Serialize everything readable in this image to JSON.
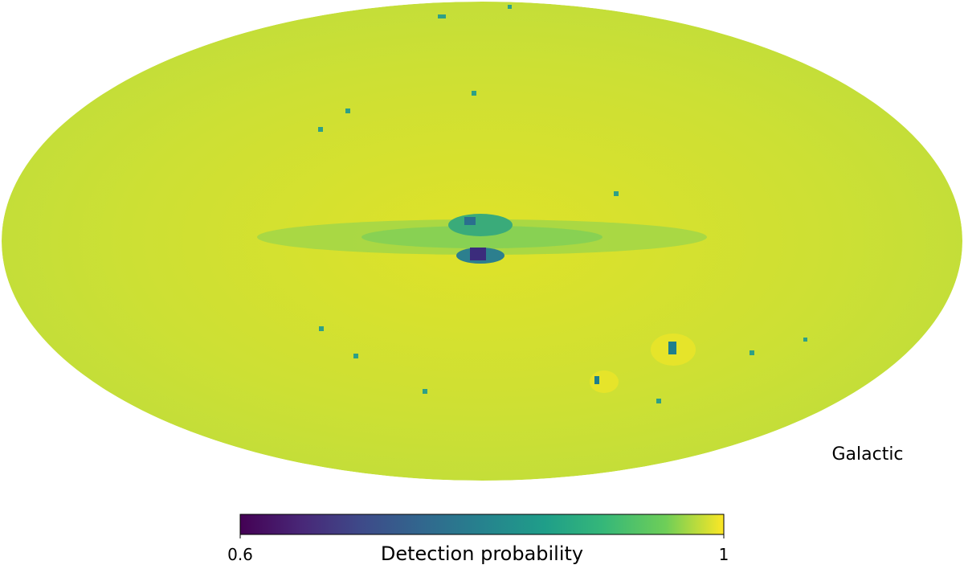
{
  "map": {
    "coord_label": "Galactic"
  },
  "colorbar": {
    "label": "Detection probability",
    "clim": [
      0.6,
      1
    ],
    "ticks": [
      0.6,
      1
    ]
  }
}
